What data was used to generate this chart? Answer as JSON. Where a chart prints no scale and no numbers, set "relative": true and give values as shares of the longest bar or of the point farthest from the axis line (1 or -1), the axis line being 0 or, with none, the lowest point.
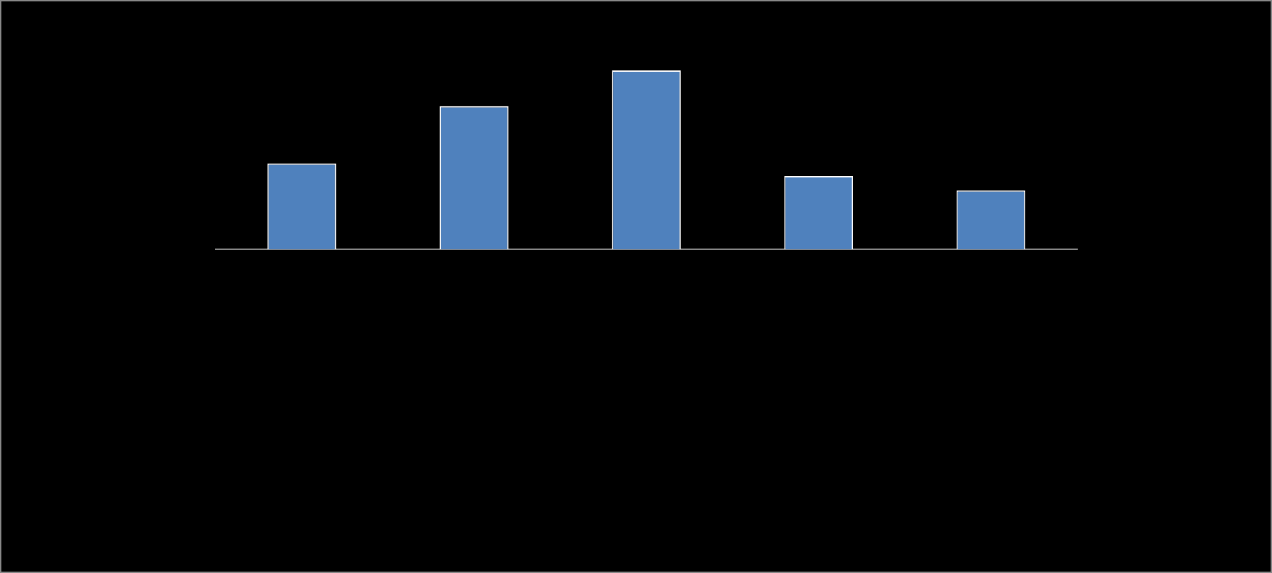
{
  "chart_data": {
    "type": "bar",
    "categories": [
      null,
      null,
      null,
      null,
      null
    ],
    "relative": true,
    "color": "#4f81bd",
    "values": [
      0.48,
      0.8,
      1,
      0.41,
      0.33
    ],
    "grid": false,
    "legend": false
  }
}
